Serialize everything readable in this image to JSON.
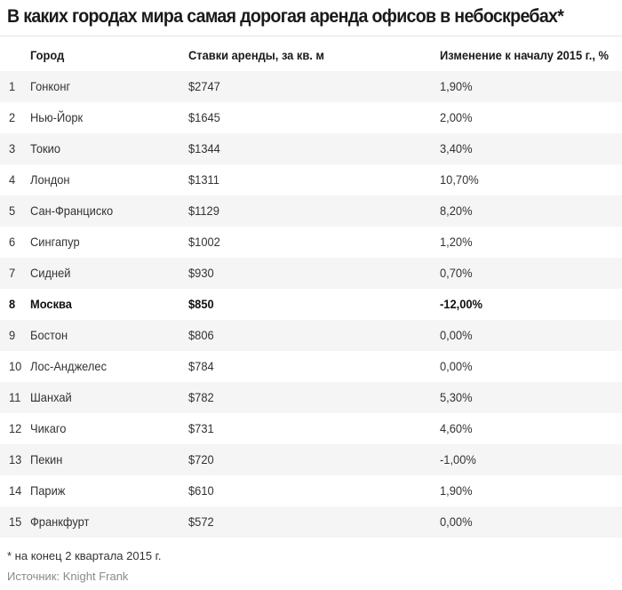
{
  "title": "В каких городах мира самая дорогая аренда офисов в небоскребах*",
  "table": {
    "headers": {
      "city": "Город",
      "rate": "Ставки аренды, за кв. м",
      "change": "Изменение к началу 2015 г., %"
    },
    "rows": [
      {
        "rank": "1",
        "city": "Гонконг",
        "rate": "$2747",
        "change": "1,90%"
      },
      {
        "rank": "2",
        "city": "Нью-Йорк",
        "rate": "$1645",
        "change": "2,00%"
      },
      {
        "rank": "3",
        "city": "Токио",
        "rate": "$1344",
        "change": "3,40%"
      },
      {
        "rank": "4",
        "city": "Лондон",
        "rate": "$1311",
        "change": "10,70%"
      },
      {
        "rank": "5",
        "city": "Сан-Франциско",
        "rate": "$1129",
        "change": "8,20%"
      },
      {
        "rank": "6",
        "city": "Сингапур",
        "rate": "$1002",
        "change": "1,20%"
      },
      {
        "rank": "7",
        "city": "Сидней",
        "rate": "$930",
        "change": "0,70%"
      },
      {
        "rank": "8",
        "city": "Москва",
        "rate": "$850",
        "change": "-12,00%",
        "highlight": true
      },
      {
        "rank": "9",
        "city": "Бостон",
        "rate": "$806",
        "change": "0,00%"
      },
      {
        "rank": "10",
        "city": "Лос-Анджелес",
        "rate": "$784",
        "change": "0,00%"
      },
      {
        "rank": "11",
        "city": "Шанхай",
        "rate": "$782",
        "change": "5,30%"
      },
      {
        "rank": "12",
        "city": "Чикаго",
        "rate": "$731",
        "change": "4,60%"
      },
      {
        "rank": "13",
        "city": "Пекин",
        "rate": "$720",
        "change": "-1,00%"
      },
      {
        "rank": "14",
        "city": "Париж",
        "rate": "$610",
        "change": "1,90%"
      },
      {
        "rank": "15",
        "city": "Франкфурт",
        "rate": "$572",
        "change": "0,00%"
      }
    ]
  },
  "footnote": "* на конец 2 квартала 2015 г.",
  "source": "Источник: Knight Frank"
}
